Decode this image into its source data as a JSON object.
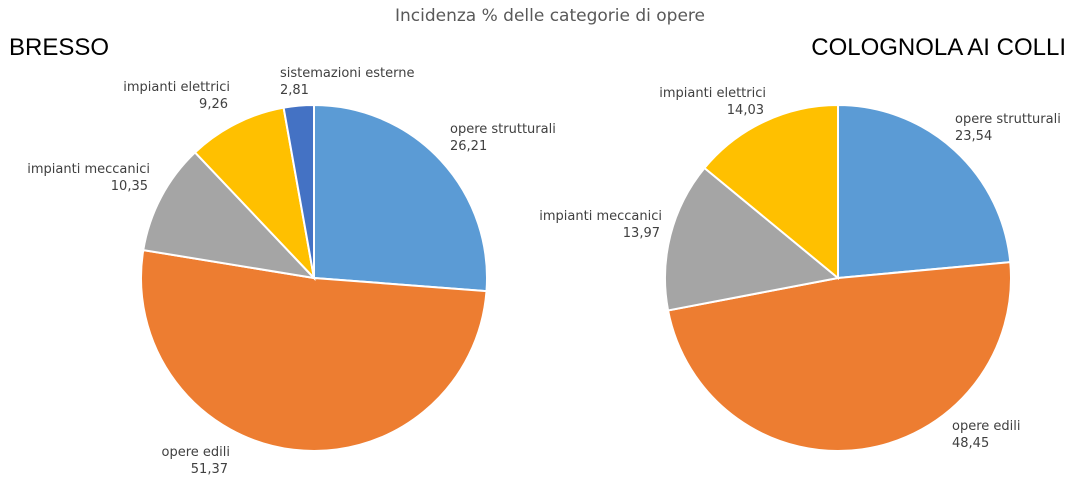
{
  "title": "Incidenza % delle categorie di opere",
  "chart_data": [
    {
      "type": "pie",
      "title": "BRESSO",
      "slices": [
        {
          "label": "opere strutturali",
          "value": 26.21,
          "display": "26,21",
          "color": "#5B9BD5"
        },
        {
          "label": "opere edili",
          "value": 51.37,
          "display": "51,37",
          "color": "#ED7D31"
        },
        {
          "label": "impianti meccanici",
          "value": 10.35,
          "display": "10,35",
          "color": "#A5A5A5"
        },
        {
          "label": "impianti elettrici",
          "value": 9.26,
          "display": "9,26",
          "color": "#FFC000"
        },
        {
          "label": "sistemazioni esterne",
          "value": 2.81,
          "display": "2,81",
          "color": "#4472C4"
        }
      ]
    },
    {
      "type": "pie",
      "title": "COLOGNOLA AI COLLI",
      "slices": [
        {
          "label": "opere strutturali",
          "value": 23.54,
          "display": "23,54",
          "color": "#5B9BD5"
        },
        {
          "label": "opere edili",
          "value": 48.45,
          "display": "48,45",
          "color": "#ED7D31"
        },
        {
          "label": "impianti meccanici",
          "value": 13.97,
          "display": "13,97",
          "color": "#A5A5A5"
        },
        {
          "label": "impianti elettrici",
          "value": 14.03,
          "display": "14,03",
          "color": "#FFC000"
        }
      ]
    }
  ]
}
